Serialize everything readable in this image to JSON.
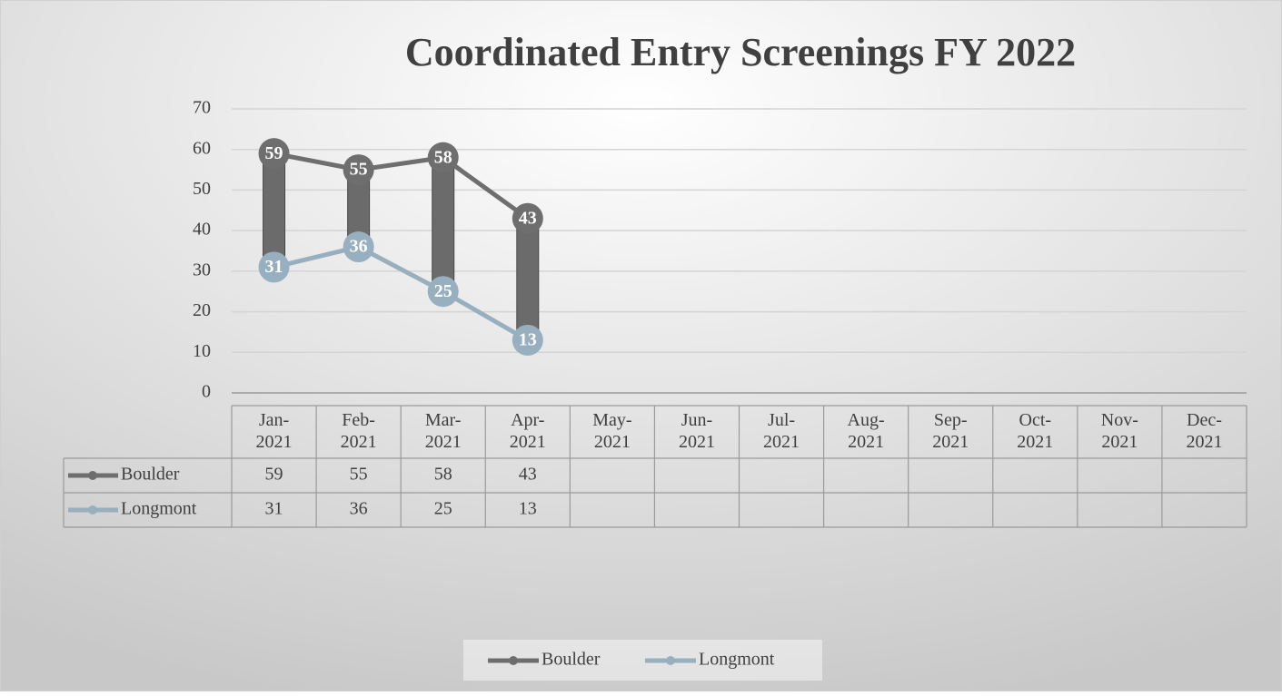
{
  "chart_data": {
    "type": "line",
    "title": "Coordinated Entry Screenings FY 2022",
    "categories": [
      "Jan-2021",
      "Feb-2021",
      "Mar-2021",
      "Apr-2021",
      "May-2021",
      "Jun-2021",
      "Jul-2021",
      "Aug-2021",
      "Sep-2021",
      "Oct-2021",
      "Nov-2021",
      "Dec-2021"
    ],
    "series": [
      {
        "name": "Boulder",
        "color": "#6e6e6e",
        "values": [
          59,
          55,
          58,
          43,
          null,
          null,
          null,
          null,
          null,
          null,
          null,
          null
        ]
      },
      {
        "name": "Longmont",
        "color": "#97afbe",
        "values": [
          31,
          36,
          25,
          13,
          null,
          null,
          null,
          null,
          null,
          null,
          null,
          null
        ]
      }
    ],
    "ylim": [
      0,
      70
    ],
    "yticks": [
      0,
      10,
      20,
      30,
      40,
      50,
      60,
      70
    ],
    "grid": true,
    "high_low_lines": true,
    "data_table": true,
    "legend": "bottom"
  }
}
